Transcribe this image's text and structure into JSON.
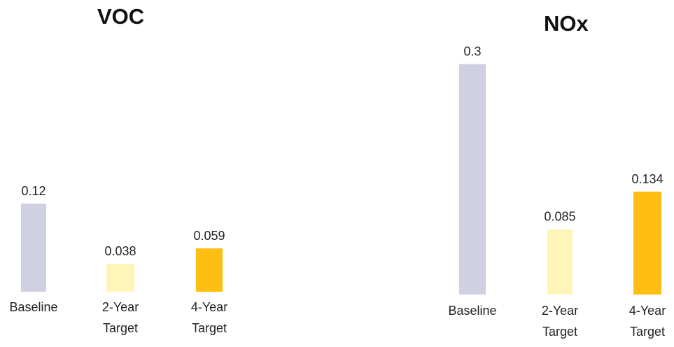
{
  "chart_data": [
    {
      "type": "bar",
      "title": "VOC",
      "categories": [
        "Baseline",
        "2-Year Target",
        "4-Year Target"
      ],
      "category_lines": [
        [
          "Baseline"
        ],
        [
          "2-Year",
          "Target"
        ],
        [
          "4-Year",
          "Target"
        ]
      ],
      "values": [
        0.12,
        0.038,
        0.059
      ],
      "value_labels": [
        "0.12",
        "0.038",
        "0.059"
      ],
      "colors": [
        "#cfd1e2",
        "#fff5b8",
        "#ffbf12"
      ],
      "xlabel": "",
      "ylabel": "",
      "grid": false,
      "legend": "none"
    },
    {
      "type": "bar",
      "title": "NOx",
      "categories": [
        "Baseline",
        "2-Year Target",
        "4-Year Target"
      ],
      "category_lines": [
        [
          "Baseline"
        ],
        [
          "2-Year",
          "Target"
        ],
        [
          "4-Year",
          "Target"
        ]
      ],
      "values": [
        0.3,
        0.085,
        0.134
      ],
      "value_labels": [
        "0.3",
        "0.085",
        "0.134"
      ],
      "colors": [
        "#cfd1e2",
        "#fff5b8",
        "#ffbf12"
      ],
      "xlabel": "",
      "ylabel": "",
      "grid": false,
      "legend": "none"
    }
  ]
}
